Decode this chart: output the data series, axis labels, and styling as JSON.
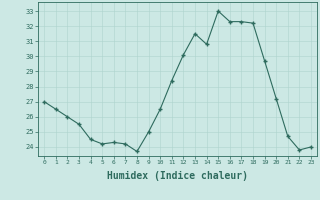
{
  "x": [
    0,
    1,
    2,
    3,
    4,
    5,
    6,
    7,
    8,
    9,
    10,
    11,
    12,
    13,
    14,
    15,
    16,
    17,
    18,
    19,
    20,
    21,
    22,
    23
  ],
  "y": [
    27.0,
    26.5,
    26.0,
    25.5,
    24.5,
    24.2,
    24.3,
    24.2,
    23.7,
    25.0,
    26.5,
    28.4,
    30.1,
    31.5,
    30.8,
    33.0,
    32.3,
    32.3,
    32.2,
    29.7,
    27.2,
    24.7,
    23.8,
    24.0
  ],
  "line_color": "#2e6b5e",
  "marker_color": "#2e6b5e",
  "bg_color": "#cce8e4",
  "grid_color": "#aed4ce",
  "axis_color": "#2e6b5e",
  "tick_color": "#2e6b5e",
  "xlabel": "Humidex (Indice chaleur)",
  "xlabel_fontsize": 7,
  "ylabel_ticks": [
    24,
    25,
    26,
    27,
    28,
    29,
    30,
    31,
    32,
    33
  ],
  "ylim": [
    23.4,
    33.6
  ],
  "xlim": [
    -0.5,
    23.5
  ]
}
